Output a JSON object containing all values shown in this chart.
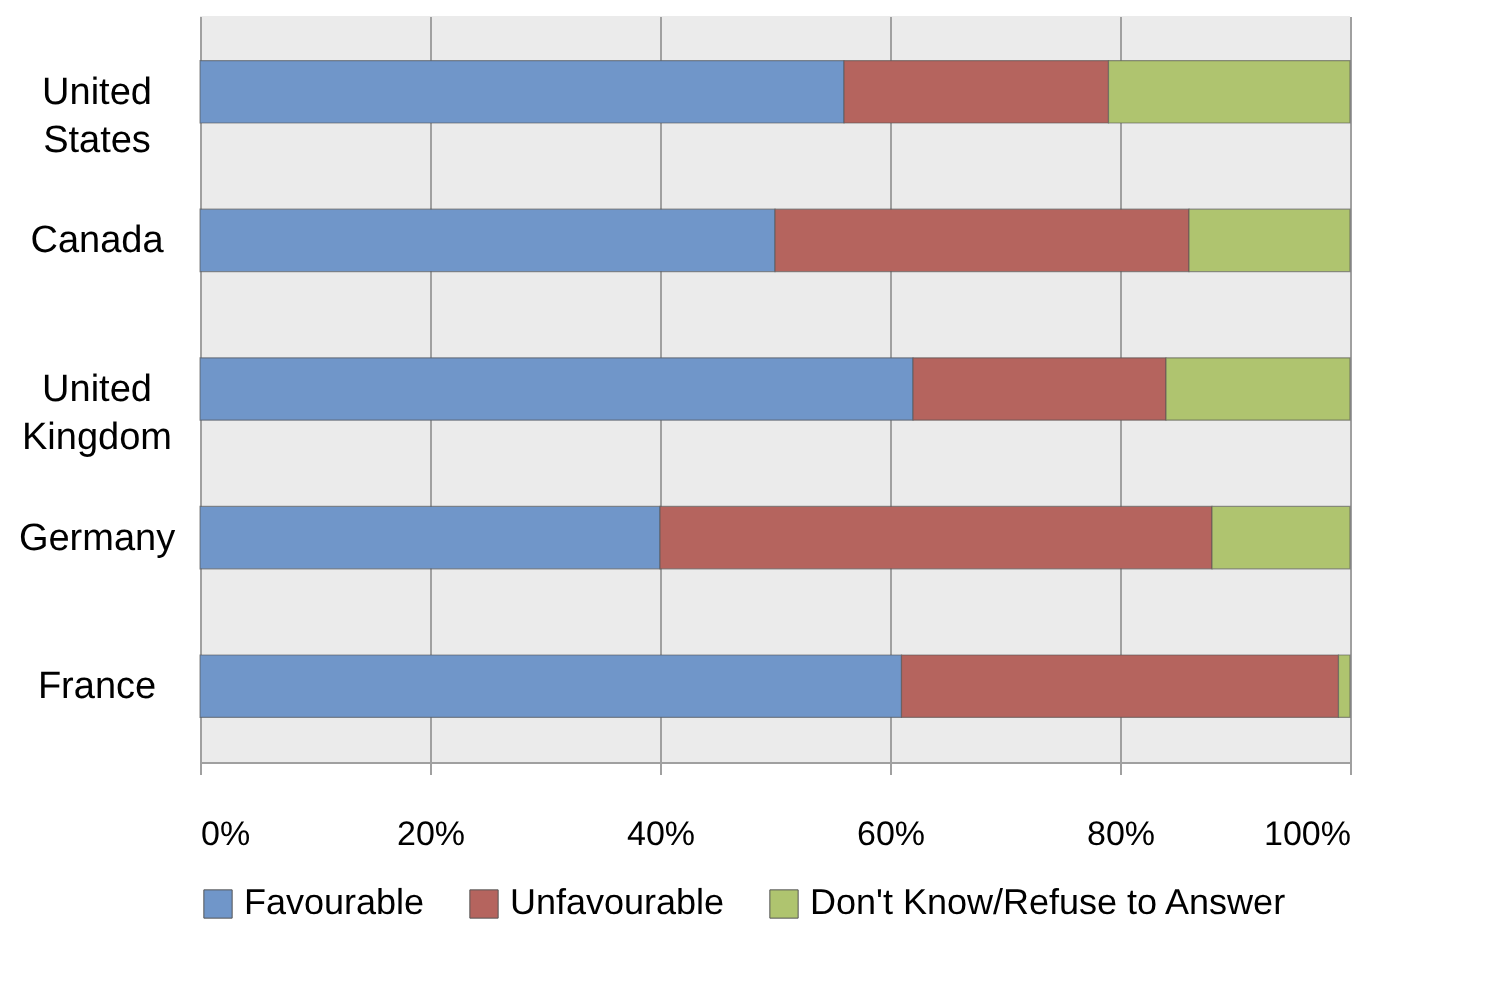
{
  "chart_data": {
    "type": "bar",
    "orientation": "horizontal",
    "stacked": true,
    "categories": [
      "United States",
      "Canada",
      "United Kingdom",
      "Germany",
      "France"
    ],
    "series": [
      {
        "name": "Favourable",
        "color": "#7096c9",
        "values": [
          56,
          50,
          62,
          40,
          61
        ]
      },
      {
        "name": "Unfavourable",
        "color": "#b5645e",
        "values": [
          23,
          36,
          22,
          48,
          38
        ]
      },
      {
        "name": "Don't Know/Refuse to Answer",
        "color": "#afc46f",
        "values": [
          21,
          14,
          16,
          12,
          1
        ]
      }
    ],
    "xlim": [
      0,
      100
    ],
    "xticks": [
      {
        "value": 0,
        "label": "0%"
      },
      {
        "value": 20,
        "label": "20%"
      },
      {
        "value": 40,
        "label": "40%"
      },
      {
        "value": 60,
        "label": "60%"
      },
      {
        "value": 80,
        "label": "80%"
      },
      {
        "value": 100,
        "label": "100%"
      }
    ],
    "grid": "x",
    "legend": "bottom"
  }
}
